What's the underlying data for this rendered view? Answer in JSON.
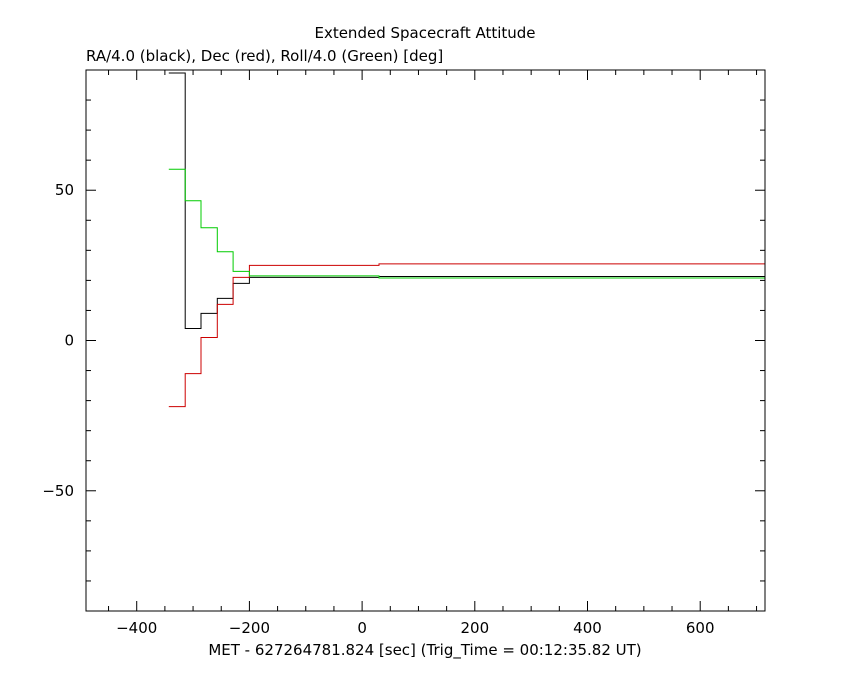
{
  "chart_data": {
    "type": "line",
    "title": "Extended Spacecraft Attitude",
    "subtitle": "RA/4.0 (black), Dec (red), Roll/4.0 (Green) [deg]",
    "xlabel": "MET - 627264781.824 [sec] (Trig_Time = 00:12:35.82 UT)",
    "ylabel": "",
    "xlim": [
      -490,
      715
    ],
    "ylim": [
      -90,
      90
    ],
    "x_ticks": [
      -400,
      -200,
      0,
      200,
      400,
      600
    ],
    "x_tick_labels": [
      "−400",
      "−200",
      "0",
      "200",
      "400",
      "600"
    ],
    "y_ticks": [
      -50,
      0,
      50
    ],
    "y_tick_labels": [
      "−50",
      "0",
      "50"
    ],
    "step_style": "step",
    "grid": false,
    "series": [
      {
        "color": "#000000",
        "x": [
          -343,
          -314,
          -314,
          -286,
          -286,
          -257,
          -257,
          -229,
          -229,
          -200,
          -200,
          30,
          30,
          715
        ],
        "y": [
          89,
          89,
          4,
          4,
          9,
          9,
          14,
          14,
          19,
          19,
          21,
          21,
          21.3,
          21.3
        ]
      },
      {
        "color": "#cc0000",
        "x": [
          -343,
          -314,
          -314,
          -286,
          -286,
          -257,
          -257,
          -229,
          -229,
          -200,
          -200,
          30,
          30,
          715
        ],
        "y": [
          -22,
          -22,
          -11,
          -11,
          1,
          1,
          12,
          12,
          21,
          21,
          25,
          25,
          25.5,
          25.5
        ]
      },
      {
        "color": "#00cc00",
        "x": [
          -343,
          -314,
          -314,
          -286,
          -286,
          -257,
          -257,
          -229,
          -229,
          -200,
          -200,
          30,
          30,
          715
        ],
        "y": [
          57,
          57,
          46.5,
          46.5,
          37.5,
          37.5,
          29.5,
          29.5,
          23,
          23,
          21.5,
          21.5,
          20.8,
          20.8
        ]
      }
    ]
  }
}
